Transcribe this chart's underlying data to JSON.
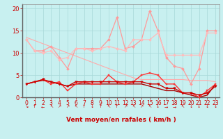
{
  "bg_color": "#c8f0f0",
  "grid_color": "#a8d8d8",
  "xlabel": "Vent moyen/en rafales ( km/h )",
  "xlim": [
    -0.5,
    23.5
  ],
  "ylim": [
    0,
    21
  ],
  "yticks": [
    0,
    5,
    10,
    15,
    20
  ],
  "xticks": [
    0,
    1,
    2,
    3,
    4,
    5,
    6,
    7,
    8,
    9,
    10,
    11,
    12,
    13,
    14,
    15,
    16,
    17,
    18,
    19,
    20,
    21,
    22,
    23
  ],
  "series": [
    {
      "comment": "light pink diagonal line going down (no markers, thin)",
      "color": "#ffaaaa",
      "linewidth": 0.8,
      "marker": null,
      "markersize": 0,
      "y": [
        13.5,
        12.8,
        12.1,
        11.4,
        10.7,
        10.0,
        9.3,
        8.6,
        7.9,
        7.2,
        6.5,
        5.8,
        5.1,
        4.4,
        4.0,
        4.0,
        4.0,
        4.0,
        4.0,
        4.0,
        3.8,
        3.8,
        3.8,
        3.5
      ]
    },
    {
      "comment": "pink line with small diamond markers - upper spiky series",
      "color": "#ff9999",
      "linewidth": 0.9,
      "marker": "D",
      "markersize": 2.0,
      "y": [
        13,
        10.5,
        10.5,
        11.5,
        9,
        6.5,
        11,
        11,
        11,
        11,
        13,
        18,
        11,
        11.5,
        13,
        19.5,
        15,
        9,
        7,
        6.5,
        3,
        6.5,
        15,
        15
      ]
    },
    {
      "comment": "medium pink line with small diamond markers - second upper series",
      "color": "#ffbbbb",
      "linewidth": 0.9,
      "marker": "D",
      "markersize": 2.0,
      "y": [
        13,
        10.5,
        10,
        10.5,
        8.5,
        9,
        11,
        11,
        10.5,
        11,
        11.5,
        11,
        10.5,
        13,
        13,
        13,
        14.5,
        9.5,
        9.5,
        9.5,
        9.5,
        9.5,
        14.5,
        14.5
      ]
    },
    {
      "comment": "red horizontal-ish line with small square markers - rafales mean",
      "color": "#ff3333",
      "linewidth": 1.0,
      "marker": "s",
      "markersize": 2.0,
      "y": [
        3,
        3.5,
        4,
        3,
        3.5,
        1.5,
        3,
        3.5,
        3,
        3,
        5,
        3.5,
        3,
        3.5,
        5,
        5.5,
        5,
        3,
        3,
        1,
        1,
        0,
        1.5,
        3
      ]
    },
    {
      "comment": "dark red line with triangle markers - moyen wind",
      "color": "#cc0000",
      "linewidth": 1.0,
      "marker": "v",
      "markersize": 2.5,
      "y": [
        3,
        3.5,
        4,
        3.5,
        3,
        2.5,
        3.5,
        3.5,
        3.5,
        3.5,
        3.5,
        3.5,
        3.5,
        3.5,
        3.5,
        3,
        3,
        2,
        2,
        1,
        1,
        0.5,
        1,
        2.5
      ]
    },
    {
      "comment": "darkest red decreasing line - no markers",
      "color": "#aa0000",
      "linewidth": 1.0,
      "marker": null,
      "markersize": 0,
      "y": [
        3,
        3.5,
        3.8,
        3.5,
        3,
        2.5,
        3,
        3,
        3,
        3,
        3,
        3,
        3,
        3,
        3,
        2.5,
        2,
        1.5,
        1.5,
        1,
        0.5,
        0,
        0.5,
        3
      ]
    }
  ],
  "arrow_labels": [
    "↘",
    "↑",
    "←",
    "↖",
    "↗",
    "↗",
    "↖",
    "↑",
    "↓",
    "↑",
    "↖",
    "↑",
    "↗",
    "↖",
    "↗",
    "↖",
    "↓",
    "→",
    "→",
    "↖",
    "↓",
    "↓",
    "↓",
    "↓"
  ],
  "xlabel_color": "#cc0000",
  "tick_color": "#cc0000",
  "spine_color": "#999999"
}
